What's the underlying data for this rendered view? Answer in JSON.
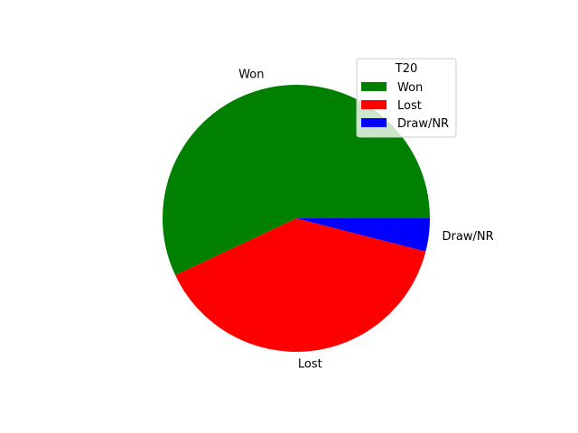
{
  "chart_data": {
    "type": "pie",
    "labels": [
      "Won",
      "Lost",
      "Draw/NR"
    ],
    "values": [
      57,
      39,
      4
    ],
    "colors": [
      "#008000",
      "#ff0000",
      "#0000ff"
    ],
    "start_angle_deg": 0,
    "direction": "counterclockwise",
    "legend": {
      "title": "T20",
      "placement": "upper-right",
      "entries": [
        "Won",
        "Lost",
        "Draw/NR"
      ]
    }
  }
}
